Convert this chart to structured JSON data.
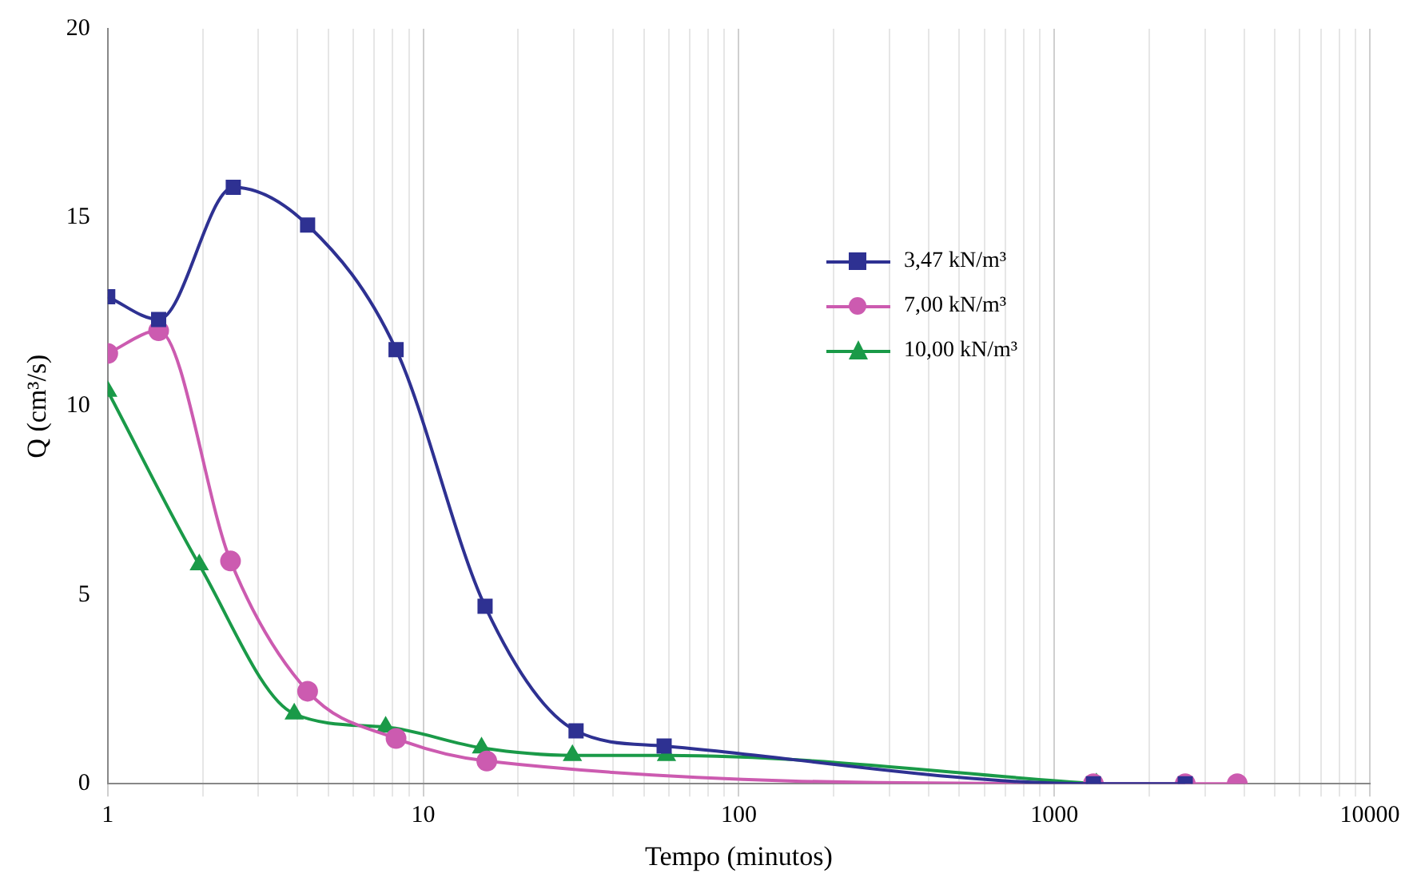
{
  "chart_data": {
    "type": "line",
    "xlabel": "Tempo (minutos)",
    "ylabel": "Q (cm³/s)",
    "log": "x",
    "xlim": [
      1,
      10000
    ],
    "ylim": [
      0,
      20
    ],
    "xticks": [
      1,
      {
        "value": 2,
        "label": null
      },
      {
        "value": 3,
        "label": null
      },
      {
        "value": 4,
        "label": null
      },
      {
        "value": 5,
        "label": null
      },
      {
        "value": 6,
        "label": null
      },
      {
        "value": 7,
        "label": null
      },
      {
        "value": 8,
        "label": null
      },
      {
        "value": 9,
        "label": null
      },
      10,
      {
        "value": 20,
        "label": null
      },
      {
        "value": 30,
        "label": null
      },
      {
        "value": 40,
        "label": null
      },
      {
        "value": 50,
        "label": null
      },
      {
        "value": 60,
        "label": null
      },
      {
        "value": 70,
        "label": null
      },
      {
        "value": 80,
        "label": null
      },
      {
        "value": 90,
        "label": null
      },
      100,
      {
        "value": 200,
        "label": null
      },
      {
        "value": 300,
        "label": null
      },
      {
        "value": 400,
        "label": null
      },
      {
        "value": 500,
        "label": null
      },
      {
        "value": 600,
        "label": null
      },
      {
        "value": 700,
        "label": null
      },
      {
        "value": 800,
        "label": null
      },
      {
        "value": 900,
        "label": null
      },
      1000,
      {
        "value": 2000,
        "label": null
      },
      {
        "value": 3000,
        "label": null
      },
      {
        "value": 4000,
        "label": null
      },
      {
        "value": 5000,
        "label": null
      },
      {
        "value": 6000,
        "label": null
      },
      {
        "value": 7000,
        "label": null
      },
      {
        "value": 8000,
        "label": null
      },
      {
        "value": 9000,
        "label": null
      },
      10000
    ],
    "yticks": [
      0,
      5,
      10,
      15,
      20
    ],
    "grid": "x",
    "legend": "top right",
    "series": [
      {
        "name": "3,47 kN/m³",
        "color": "#2e3192",
        "marker": "square",
        "x": [
          1,
          1.45,
          2.5,
          4.3,
          8.2,
          15.7,
          30.5,
          58,
          1330,
          2600
        ],
        "values": [
          12.9,
          12.3,
          15.8,
          14.8,
          11.5,
          4.7,
          1.4,
          1.0,
          0,
          0
        ]
      },
      {
        "name": "7,00 kN/m³",
        "color": "#cc5bb0",
        "marker": "circle",
        "x": [
          1,
          1.45,
          2.45,
          4.3,
          8.2,
          15.9,
          1330,
          2600,
          3800
        ],
        "values": [
          11.4,
          12.0,
          5.9,
          2.45,
          1.2,
          0.6,
          0,
          0,
          0
        ]
      },
      {
        "name": "10,00 kN/m³",
        "color": "#1a9a48",
        "marker": "triangle",
        "x": [
          1,
          1.95,
          3.9,
          7.6,
          15.3,
          29.7,
          59,
          1360
        ],
        "values": [
          10.4,
          5.8,
          1.85,
          1.5,
          0.95,
          0.75,
          0.75,
          0
        ]
      }
    ]
  }
}
